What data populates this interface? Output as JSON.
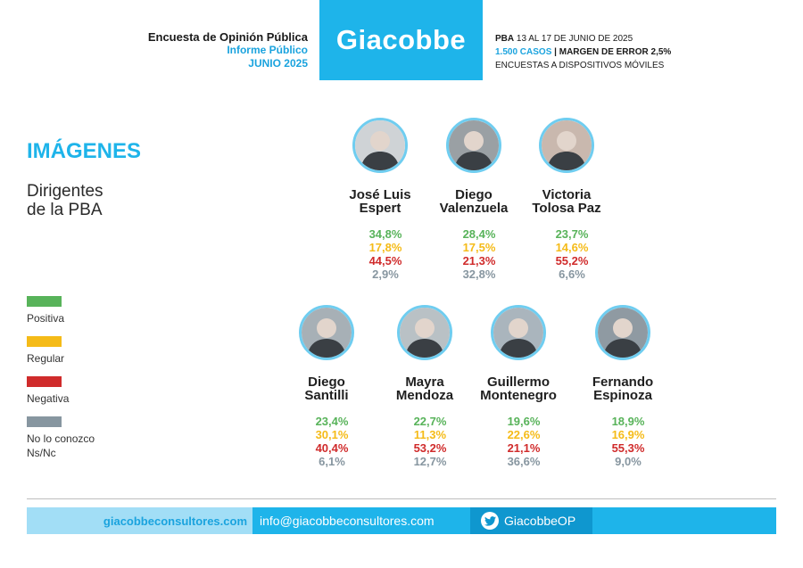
{
  "header": {
    "survey_title": "Encuesta de Opinión Pública",
    "report_type": "Informe Público",
    "month": "JUNIO 2025",
    "brand": "Giacobbe",
    "dates_prefix": "PBA",
    "dates": "13 AL 17 DE JUNIO DE 2025",
    "cases": "1.500 CASOS",
    "separator": "|",
    "margin": "MARGEN DE ERROR 2,5%",
    "method": "ENCUESTAS A DISPOSITIVOS MÓVILES"
  },
  "section_title": "IMÁGENES",
  "subtitle_line1": "Dirigentes",
  "subtitle_line2": "de la PBA",
  "legend": [
    {
      "label": "Positiva",
      "color": "#58b35a"
    },
    {
      "label": "Regular",
      "color": "#f5bb18"
    },
    {
      "label": "Negativa",
      "color": "#d02b2b"
    },
    {
      "label": "No lo conozco",
      "label2": "Ns/Nc",
      "color": "#8796a0"
    }
  ],
  "footer": {
    "website": "giacobbeconsultores.com",
    "email": "info@giacobbeconsultores.com",
    "twitter": "GiacobbeOP"
  },
  "chart_data": {
    "type": "table",
    "series": [
      "Positiva",
      "Regular",
      "Negativa",
      "No lo conozco Ns/Nc"
    ],
    "candidates": [
      {
        "first": "José Luis",
        "last": "Espert",
        "values": [
          "34,8%",
          "17,8%",
          "44,5%",
          "2,9%"
        ]
      },
      {
        "first": "Diego",
        "last": "Valenzuela",
        "values": [
          "28,4%",
          "17,5%",
          "21,3%",
          "32,8%"
        ]
      },
      {
        "first": "Victoria",
        "last": "Tolosa Paz",
        "values": [
          "23,7%",
          "14,6%",
          "55,2%",
          "6,6%"
        ]
      },
      {
        "first": "Diego",
        "last": "Santilli",
        "values": [
          "23,4%",
          "30,1%",
          "40,4%",
          "6,1%"
        ]
      },
      {
        "first": "Mayra",
        "last": "Mendoza",
        "values": [
          "22,7%",
          "11,3%",
          "53,2%",
          "12,7%"
        ]
      },
      {
        "first": "Guillermo",
        "last": "Montenegro",
        "values": [
          "19,6%",
          "22,6%",
          "21,1%",
          "36,6%"
        ]
      },
      {
        "first": "Fernando",
        "last": "Espinoza",
        "values": [
          "18,9%",
          "16,9%",
          "55,3%",
          "9,0%"
        ]
      }
    ]
  }
}
